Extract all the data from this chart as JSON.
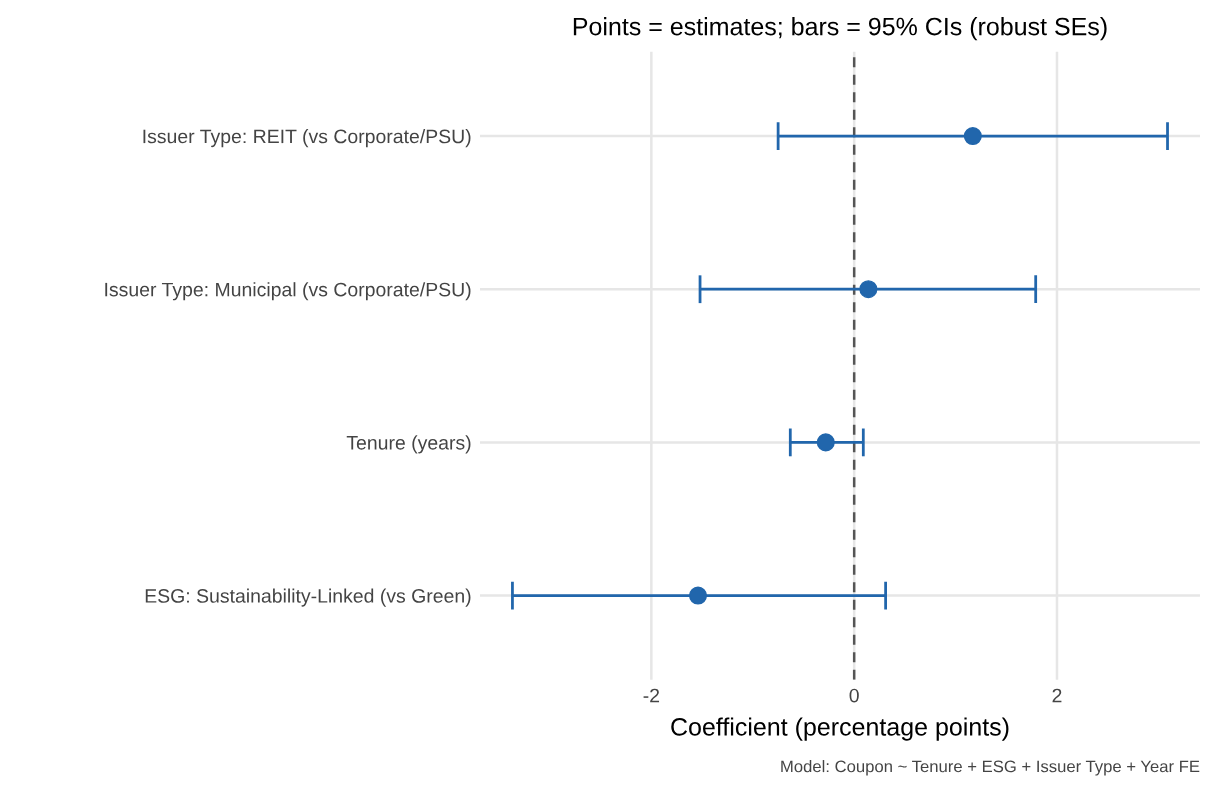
{
  "chart_data": {
    "type": "scatter",
    "orientation": "horizontal",
    "title": "Points = estimates; bars = 95% CIs (robust SEs)",
    "xlabel": "Coefficient (percentage points)",
    "categories": [
      "Issuer Type: REIT (vs Corporate/PSU)",
      "Issuer Type: Municipal (vs Corporate/PSU)",
      "Tenure (years)",
      "ESG: Sustainability-Linked (vs Green)"
    ],
    "values": [
      1.17,
      0.14,
      -0.28,
      -1.54
    ],
    "errors": [
      [
        -0.75,
        3.09
      ],
      [
        -1.52,
        1.79
      ],
      [
        -0.63,
        0.09
      ],
      [
        -3.37,
        0.31
      ]
    ],
    "color": "#2166ac",
    "marker": "circle",
    "xlim": [
      -3.69,
      3.41
    ],
    "xticks": [
      -2,
      0,
      2
    ],
    "grid": true,
    "ref_lines": [
      {
        "axis": "x",
        "value": 0,
        "color": "#555555",
        "line_style": "dashed"
      }
    ],
    "annotations": [
      "Model: Coupon ~ Tenure + ESG + Issuer Type + Year FE"
    ]
  }
}
